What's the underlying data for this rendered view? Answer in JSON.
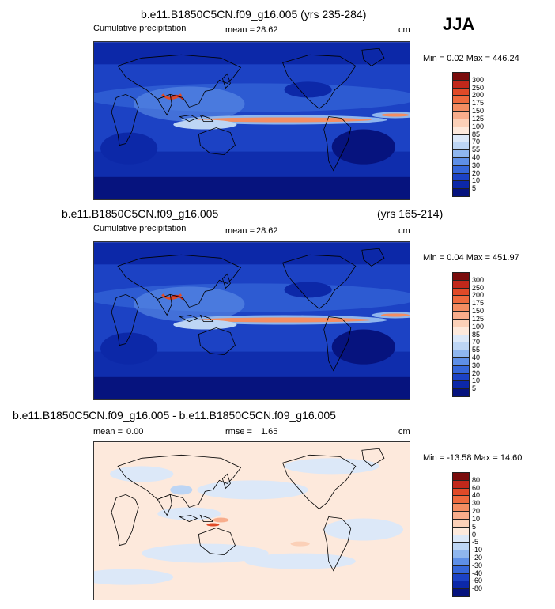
{
  "season": "JJA",
  "panels": [
    {
      "title": "b.e11.B1850C5CN.f09_g16.005 (yrs 235-284)",
      "variable": "Cumulative precipitation",
      "stat_label": "mean =",
      "stat_value": "28.62",
      "units": "cm",
      "minmax": "Min =  0.02 Max = 446.24",
      "kind": "precip"
    },
    {
      "title": "b.e11.B1850C5CN.f09_g16.005",
      "title_years": "(yrs 165-214)",
      "variable": "Cumulative precipitation",
      "stat_label": "mean =",
      "stat_value": "28.62",
      "units": "cm",
      "minmax": "Min =  0.04 Max = 451.97",
      "kind": "precip"
    },
    {
      "title": "b.e11.B1850C5CN.f09_g16.005 - b.e11.B1850C5CN.f09_g16.005",
      "mean_label": "mean =",
      "mean_value": "0.00",
      "rmse_label": "rmse =",
      "rmse_value": "1.65",
      "units": "cm",
      "minmax": "Min = -13.58 Max =  14.60",
      "kind": "diff"
    }
  ],
  "colorbars": {
    "precip": {
      "levels": [
        "300",
        "250",
        "200",
        "175",
        "150",
        "125",
        "100",
        "85",
        "70",
        "55",
        "40",
        "30",
        "20",
        "10",
        "5"
      ],
      "colors": [
        "#7a0c0c",
        "#c0281b",
        "#e04a28",
        "#ee6a3e",
        "#f48d62",
        "#f8ad8c",
        "#fbd0b8",
        "#fde9dc",
        "#dce8f8",
        "#bdd5f4",
        "#8fb6ee",
        "#5e8fe6",
        "#3566d8",
        "#1c42c4",
        "#0c28a8",
        "#06137e"
      ]
    },
    "diff": {
      "levels": [
        "80",
        "60",
        "40",
        "30",
        "20",
        "10",
        "5",
        "0",
        "-5",
        "-10",
        "-20",
        "-30",
        "-40",
        "-60",
        "-80"
      ],
      "colors": [
        "#7a0c0c",
        "#c0281b",
        "#e04a28",
        "#ee6a3e",
        "#f48d62",
        "#f8ad8c",
        "#fbd0b8",
        "#fde9dc",
        "#dce8f8",
        "#bdd5f4",
        "#8fb6ee",
        "#5e8fe6",
        "#3566d8",
        "#1c42c4",
        "#0c28a8",
        "#06137e"
      ]
    }
  }
}
